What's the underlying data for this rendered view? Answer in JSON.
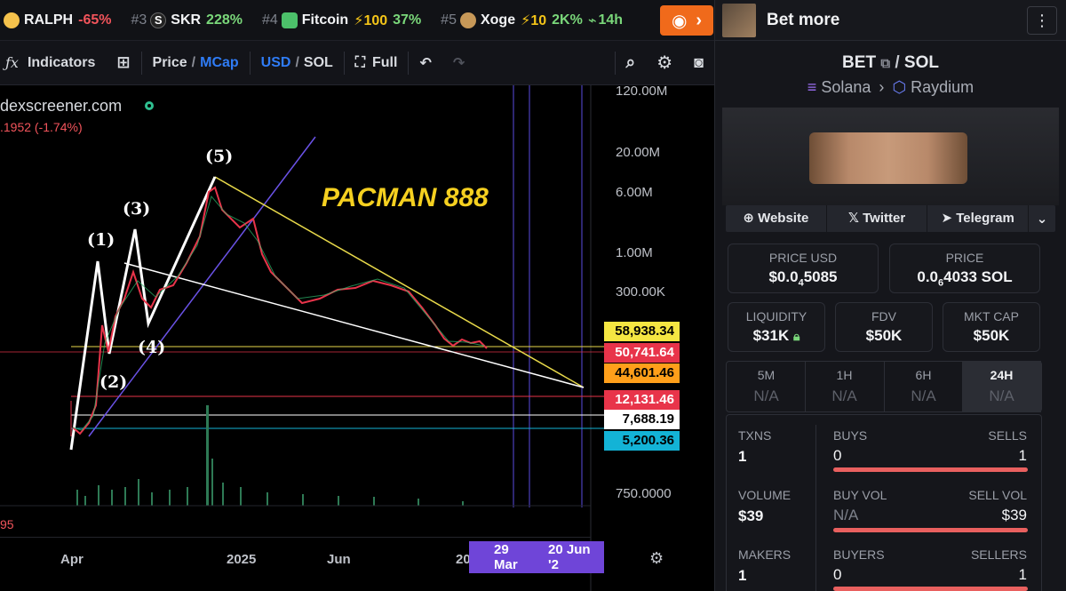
{
  "ticker": [
    {
      "rank": "",
      "name": "RALPH",
      "change": "-65%",
      "color": "#f2545b"
    },
    {
      "rank": "#3",
      "name": "SKR",
      "change": "228%"
    },
    {
      "rank": "#4",
      "name": "Fitcoin",
      "boost": "⚡100",
      "change": "37%"
    },
    {
      "rank": "#5",
      "name": "Xoge",
      "boost": "⚡10",
      "change": "2K%",
      "age": "14h"
    }
  ],
  "toolbar": {
    "indicators": "Indicators",
    "price": "Price",
    "slash": "/",
    "mcap": "MCap",
    "usd": "USD",
    "sol": "SOL",
    "full": "Full"
  },
  "chart": {
    "watermark": "dexscreener.com",
    "change_text": ".1952 (-1.74%)",
    "left_value": "95",
    "annotation": "PACMAN 888",
    "waves": [
      "(1)",
      "(2)",
      "(3)",
      "(4)",
      "(5)"
    ],
    "y_axis": [
      "120.00M",
      "20.00M",
      "6.00M",
      "1.00M",
      "300.00K",
      "750.0000"
    ],
    "price_tags": [
      {
        "text": "58,938.34",
        "bg": "#f5e642",
        "fg": "#000000"
      },
      {
        "text": "50,741.64",
        "bg": "#e8344a",
        "fg": "#ffffff"
      },
      {
        "text": "44,601.46",
        "bg": "#ff9f1a",
        "fg": "#000000"
      },
      {
        "text": "12,131.46",
        "bg": "#e8344a",
        "fg": "#ffffff"
      },
      {
        "text": "7,688.19",
        "bg": "#ffffff",
        "fg": "#000000"
      },
      {
        "text": "5,200.36",
        "bg": "#13b3d6",
        "fg": "#000000"
      }
    ],
    "x_axis": [
      "Apr",
      "2025",
      "Jun",
      "20"
    ],
    "range_label_1": "29 Mar",
    "range_label_2": "20 Jun '2"
  },
  "panel": {
    "title": "Bet more",
    "base": "BET",
    "quote": "SOL",
    "chain": "Solana",
    "dex": "Raydium",
    "links": [
      "Website",
      "Twitter",
      "Telegram"
    ],
    "price_usd_label": "PRICE USD",
    "price_usd": "$0.0",
    "price_usd_sub": "4",
    "price_usd_tail": "5085",
    "price_sol_label": "PRICE",
    "price_sol": "0.0",
    "price_sol_sub": "6",
    "price_sol_tail": "4033 SOL",
    "liquidity_label": "LIQUIDITY",
    "liquidity": "$31K",
    "fdv_label": "FDV",
    "fdv": "$50K",
    "mcap_label": "MKT CAP",
    "mcap": "$50K",
    "timeframes": [
      {
        "label": "5M",
        "value": "N/A"
      },
      {
        "label": "1H",
        "value": "N/A"
      },
      {
        "label": "6H",
        "value": "N/A"
      },
      {
        "label": "24H",
        "value": "N/A"
      }
    ],
    "txns_label": "TXNS",
    "txns": "1",
    "buys_label": "BUYS",
    "buys": "0",
    "sells_label": "SELLS",
    "sells": "1",
    "volume_label": "VOLUME",
    "volume": "$39",
    "buy_vol_label": "BUY VOL",
    "buy_vol": "N/A",
    "sell_vol_label": "SELL VOL",
    "sell_vol": "$39",
    "makers_label": "MAKERS",
    "makers": "1",
    "buyers_label": "BUYERS",
    "buyers": "0",
    "sellers_label": "SELLERS",
    "sellers": "1"
  },
  "colors": {
    "accent_orange": "#f06a1b",
    "buy_green": "#7ad77a",
    "sell_red": "#e9605f",
    "link_blue": "#2f7cf6",
    "annotation_yellow": "#f5d020"
  }
}
